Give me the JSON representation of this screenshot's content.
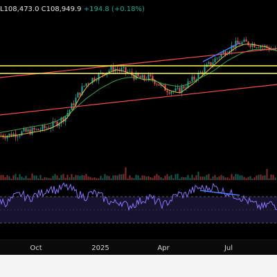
{
  "legend": {
    "low": "L108,473.0",
    "close": "C108,949.9",
    "change": "+194.8 (+0.18%)"
  },
  "xaxis": {
    "labels": [
      "Oct",
      "2025",
      "Apr",
      "Jul"
    ]
  },
  "colors": {
    "up": "#26a69a",
    "down": "#ef5350",
    "ma_fast": "#e8c547",
    "ma_slow": "#3aa64a",
    "trend_red": "#ff4d4d",
    "level_yellow": "#ffff4d",
    "divergence_blue": "#4a7dff",
    "rsi": "#8a78ff"
  },
  "chart_data": {
    "type": "line",
    "series": [
      {
        "values": [
          8,
          8,
          9,
          10,
          11,
          12,
          13,
          15,
          18,
          22,
          30,
          40,
          48,
          52,
          55,
          58,
          60,
          59,
          57,
          54,
          52,
          53,
          50,
          45,
          43,
          42,
          46,
          50,
          55,
          60,
          65,
          70,
          74,
          78,
          80,
          80,
          79,
          78,
          76,
          74
        ]
      },
      {
        "values": [
          10,
          11,
          12,
          13,
          14,
          15,
          16,
          17,
          19,
          22,
          26,
          31,
          36,
          40,
          44,
          47,
          50,
          52,
          53,
          53,
          52,
          51,
          50,
          48,
          47,
          46,
          47,
          49,
          52,
          55,
          58,
          62,
          66,
          69,
          72,
          74,
          75,
          75,
          75,
          74
        ]
      },
      {
        "values": [
          50,
          45,
          55,
          60,
          52,
          58,
          62,
          70,
          65,
          72,
          68,
          60,
          55,
          62,
          58,
          50,
          45,
          48,
          40,
          44,
          50,
          55,
          48,
          42,
          50,
          60,
          58,
          65,
          70,
          68,
          72,
          66,
          62,
          58,
          54,
          48,
          42,
          38,
          45,
          40
        ]
      }
    ],
    "annotations": {
      "horizontal_levels": 2,
      "trendlines": 3,
      "divergence_lines": 2
    }
  }
}
